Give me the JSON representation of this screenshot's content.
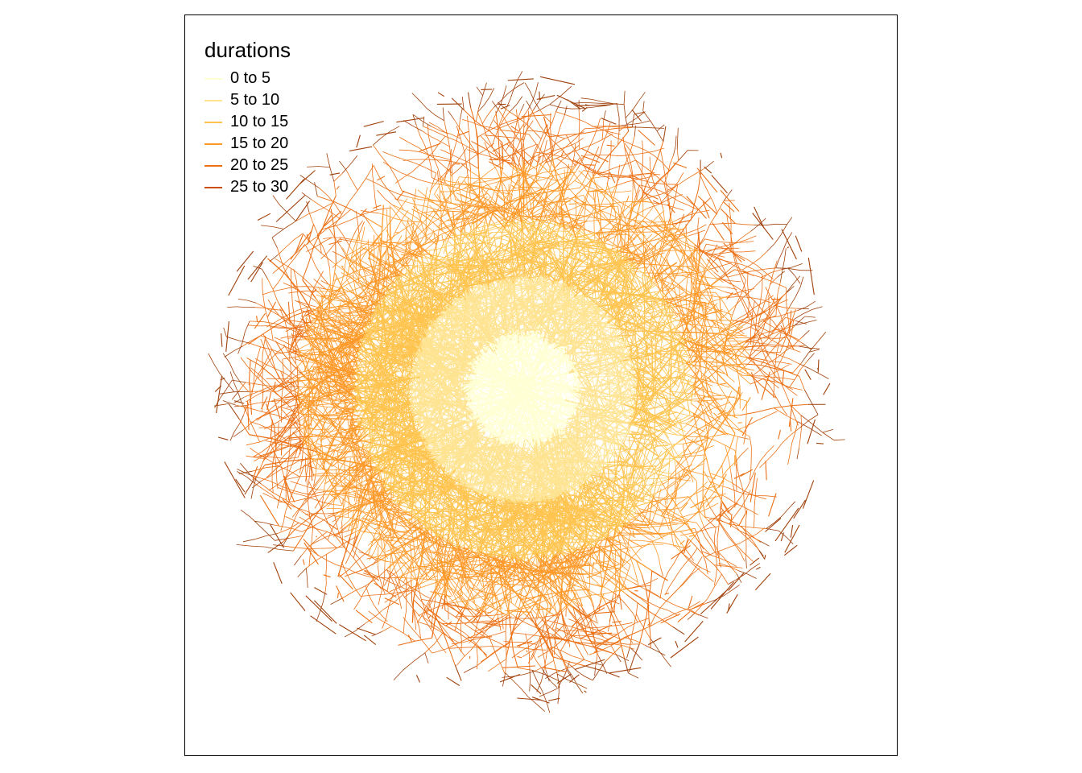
{
  "legend": {
    "title": "durations",
    "classes": [
      {
        "label": "0 to 5",
        "color": "#FFFFD4"
      },
      {
        "label": "5 to 10",
        "color": "#FEE391"
      },
      {
        "label": "10 to 15",
        "color": "#FEC44F"
      },
      {
        "label": "15 to 20",
        "color": "#FE9929"
      },
      {
        "label": "20 to 25",
        "color": "#EC7014"
      },
      {
        "label": "25 to 30",
        "color": "#CC4C02"
      }
    ],
    "edge_color": "#A0400A"
  },
  "map": {
    "type": "isochrone-network",
    "max_duration": 30
  }
}
